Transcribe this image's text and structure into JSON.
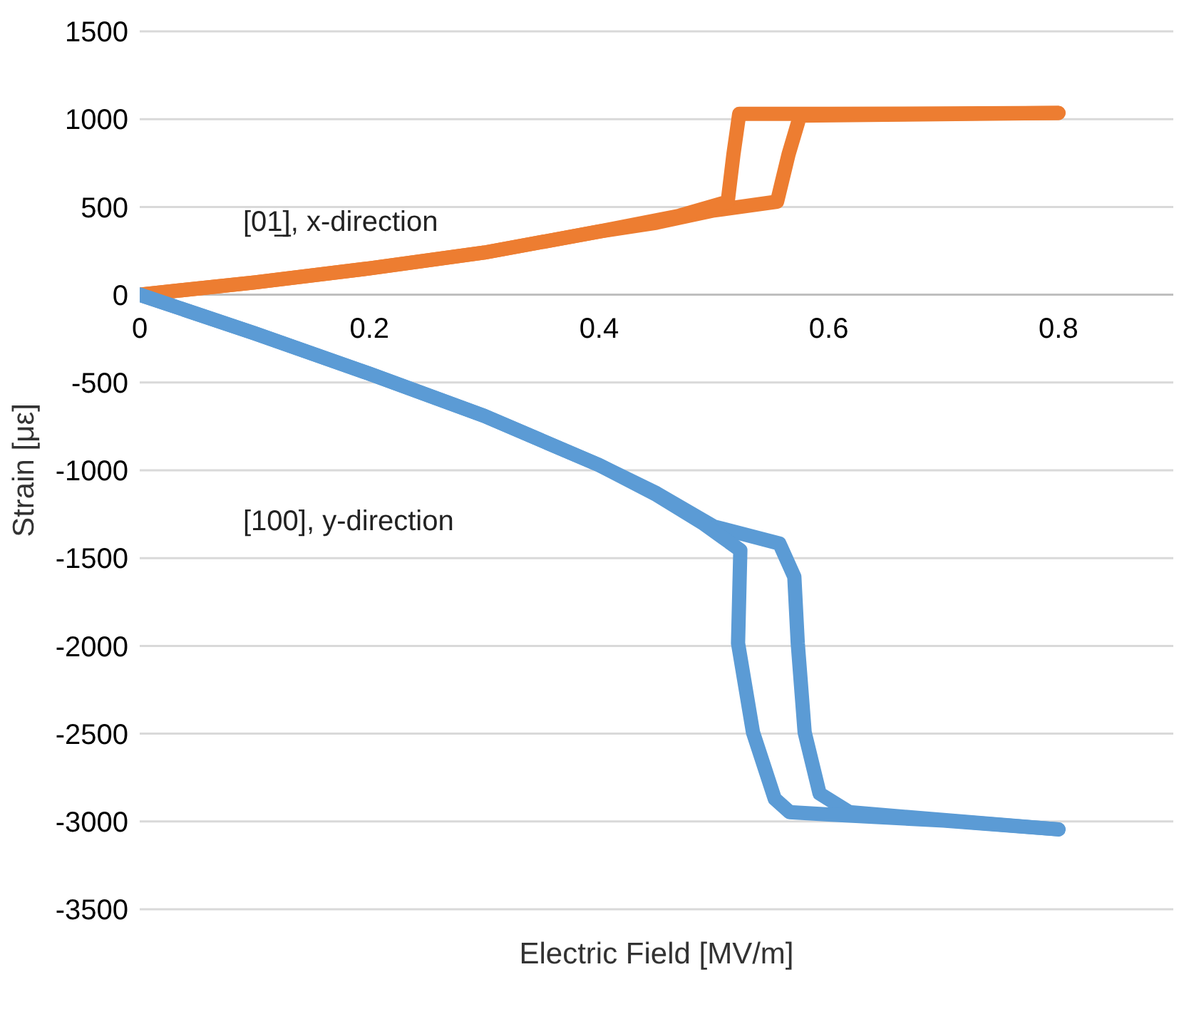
{
  "chart_data": {
    "type": "line",
    "xlabel": "Electric Field [MV/m]",
    "ylabel": "Strain [με]",
    "xlim": [
      0,
      0.9
    ],
    "xticks": [
      0,
      0.2,
      0.4,
      0.6,
      0.8
    ],
    "ylim": [
      -3500,
      1500
    ],
    "yticks": [
      -3500,
      -3000,
      -2500,
      -2000,
      -1500,
      -1000,
      -500,
      0,
      500,
      1000,
      1500
    ],
    "grid": "y",
    "marker": "none",
    "line_style": "solid",
    "annotations": [
      "[01̲], x-direction",
      "[100], y-direction"
    ],
    "series": [
      {
        "color": "#ed7d31",
        "x": [
          0,
          0.1,
          0.2,
          0.3,
          0.4,
          0.45,
          0.5,
          0.555,
          0.565,
          0.575,
          0.65,
          0.8
        ],
        "values": [
          0,
          70,
          150,
          240,
          360,
          410,
          480,
          530,
          800,
          1020,
          1025,
          1035
        ]
      },
      {
        "color": "#ed7d31",
        "x": [
          0.8,
          0.7,
          0.6,
          0.522,
          0.517,
          0.512,
          0.47,
          0.4,
          0.3,
          0.2,
          0.1,
          0
        ],
        "values": [
          1035,
          1032,
          1030,
          1030,
          800,
          530,
          450,
          360,
          240,
          150,
          70,
          0
        ]
      },
      {
        "color": "#5b9bd5",
        "x": [
          0,
          0.1,
          0.2,
          0.3,
          0.4,
          0.45,
          0.5,
          0.557,
          0.57,
          0.573,
          0.579,
          0.592,
          0.618,
          0.7,
          0.8
        ],
        "values": [
          0,
          -220,
          -450,
          -690,
          -970,
          -1130,
          -1320,
          -1417,
          -1606,
          -1985,
          -2492,
          -2841,
          -2947,
          -2992,
          -3045
        ]
      },
      {
        "color": "#5b9bd5",
        "x": [
          0.8,
          0.7,
          0.6,
          0.566,
          0.553,
          0.534,
          0.521,
          0.523,
          0.49,
          0.45,
          0.4,
          0.3,
          0.2,
          0.1,
          0
        ],
        "values": [
          -3045,
          -2995,
          -2960,
          -2947,
          -2871,
          -2492,
          -1985,
          -1455,
          -1300,
          -1140,
          -970,
          -690,
          -450,
          -220,
          0
        ]
      }
    ]
  }
}
